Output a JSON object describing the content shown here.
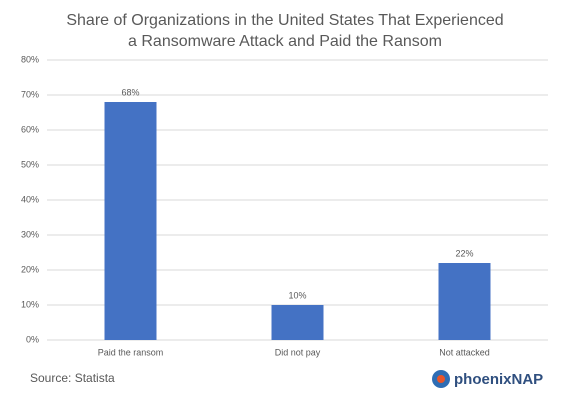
{
  "chart_data": {
    "type": "bar",
    "title": "Share of Organizations in the United States That Experienced a Ransomware Attack and Paid the Ransom",
    "categories": [
      "Paid the ransom",
      "Did not pay",
      "Not attacked"
    ],
    "values": [
      68,
      10,
      22
    ],
    "value_labels": [
      "68%",
      "10%",
      "22%"
    ],
    "color": "#4472c4",
    "ylim": [
      0,
      80
    ],
    "yticks": [
      {
        "value": 0,
        "label": "0%"
      },
      {
        "value": 10,
        "label": "10%"
      },
      {
        "value": 20,
        "label": "20%"
      },
      {
        "value": 30,
        "label": "30%"
      },
      {
        "value": 40,
        "label": "40%"
      },
      {
        "value": 50,
        "label": "50%"
      },
      {
        "value": 60,
        "label": "60%"
      },
      {
        "value": 70,
        "label": "70%"
      },
      {
        "value": 80,
        "label": "80%"
      }
    ],
    "grid": true,
    "source": "Source: Statista",
    "logo": "phoenixNAP"
  }
}
